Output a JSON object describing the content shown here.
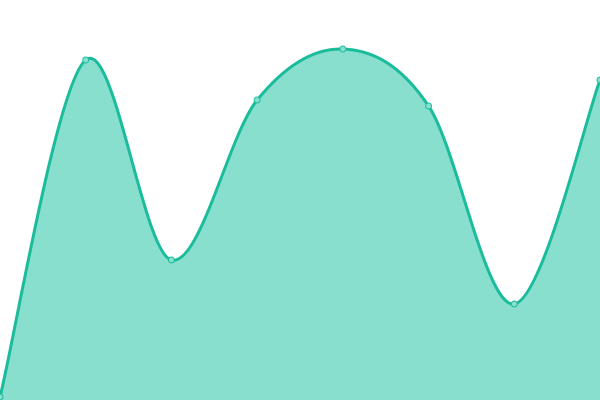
{
  "chart_data": {
    "type": "area",
    "curve": "smooth",
    "x": [
      0,
      1,
      2,
      3,
      4,
      5,
      6,
      7
    ],
    "values": [
      3,
      340,
      140,
      300,
      351,
      294,
      96,
      320
    ],
    "ylim": [
      0,
      400
    ],
    "xlim": [
      0,
      7
    ],
    "grid": false,
    "legend": "none",
    "colors": {
      "line": "#1abc9c",
      "fill": "#88dfce",
      "marker_fill": "#88dfce",
      "marker_stroke": "#1abc9c"
    }
  }
}
